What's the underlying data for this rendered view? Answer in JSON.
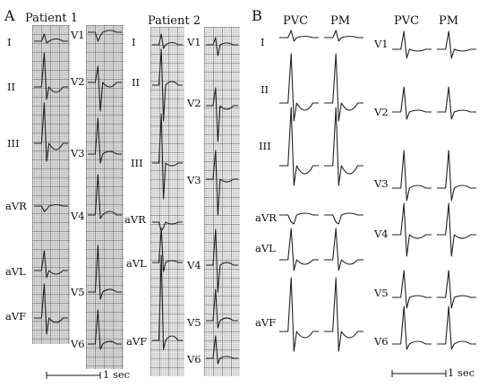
{
  "figure": {
    "panel_a": {
      "label": "A",
      "patient1": {
        "title": "Patient 1",
        "limb_leads": [
          "I",
          "II",
          "III",
          "aVR",
          "aVL",
          "aVF"
        ],
        "chest_leads": [
          "V1",
          "V2",
          "V3",
          "V4",
          "V5",
          "V6"
        ]
      },
      "patient2": {
        "title": "Patient 2",
        "limb_leads": [
          "I",
          "II",
          "III",
          "aVR",
          "aVL",
          "aVF"
        ],
        "chest_leads": [
          "V1",
          "V2",
          "V3",
          "V4",
          "V5",
          "V6"
        ]
      },
      "scale_label": "1 sec"
    },
    "panel_b": {
      "label": "B",
      "column_headers": [
        "PVC",
        "PM",
        "PVC",
        "PM"
      ],
      "limb_leads": [
        "I",
        "II",
        "III",
        "aVR",
        "aVL",
        "aVF"
      ],
      "chest_leads": [
        "V1",
        "V2",
        "V3",
        "V4",
        "V5",
        "V6"
      ],
      "scale_label": "1 sec"
    }
  }
}
